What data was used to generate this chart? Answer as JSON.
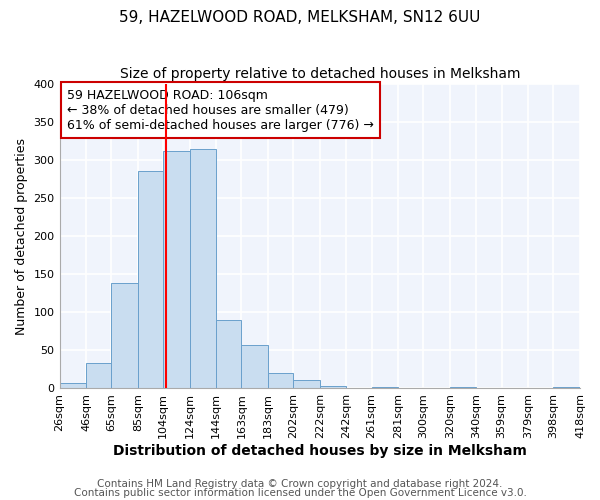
{
  "title": "59, HAZELWOOD ROAD, MELKSHAM, SN12 6UU",
  "subtitle": "Size of property relative to detached houses in Melksham",
  "xlabel": "Distribution of detached houses by size in Melksham",
  "ylabel": "Number of detached properties",
  "bin_edges": [
    26,
    46,
    65,
    85,
    104,
    124,
    144,
    163,
    183,
    202,
    222,
    242,
    261,
    281,
    300,
    320,
    340,
    359,
    379,
    398,
    418
  ],
  "bin_labels": [
    "26sqm",
    "46sqm",
    "65sqm",
    "85sqm",
    "104sqm",
    "124sqm",
    "144sqm",
    "163sqm",
    "183sqm",
    "202sqm",
    "222sqm",
    "242sqm",
    "261sqm",
    "281sqm",
    "300sqm",
    "320sqm",
    "340sqm",
    "359sqm",
    "379sqm",
    "398sqm",
    "418sqm"
  ],
  "counts": [
    7,
    33,
    138,
    285,
    312,
    315,
    90,
    57,
    20,
    10,
    2,
    0,
    1,
    0,
    0,
    1,
    0,
    0,
    0,
    1
  ],
  "bar_facecolor": "#c9ddf0",
  "bar_edgecolor": "#6aa0cc",
  "property_line_x": 106,
  "property_line_color": "red",
  "annotation_line1": "59 HAZELWOOD ROAD: 106sqm",
  "annotation_line2": "← 38% of detached houses are smaller (479)",
  "annotation_line3": "61% of semi-detached houses are larger (776) →",
  "annotation_box_facecolor": "white",
  "annotation_box_edgecolor": "#cc0000",
  "ylim": [
    0,
    400
  ],
  "yticks": [
    0,
    50,
    100,
    150,
    200,
    250,
    300,
    350,
    400
  ],
  "footer_line1": "Contains HM Land Registry data © Crown copyright and database right 2024.",
  "footer_line2": "Contains public sector information licensed under the Open Government Licence v3.0.",
  "bg_color": "#ffffff",
  "plot_bg_color": "#f0f4fc",
  "grid_color": "white",
  "title_fontsize": 11,
  "subtitle_fontsize": 10,
  "axis_label_fontsize": 9,
  "tick_fontsize": 8,
  "annotation_fontsize": 9,
  "footer_fontsize": 7.5
}
